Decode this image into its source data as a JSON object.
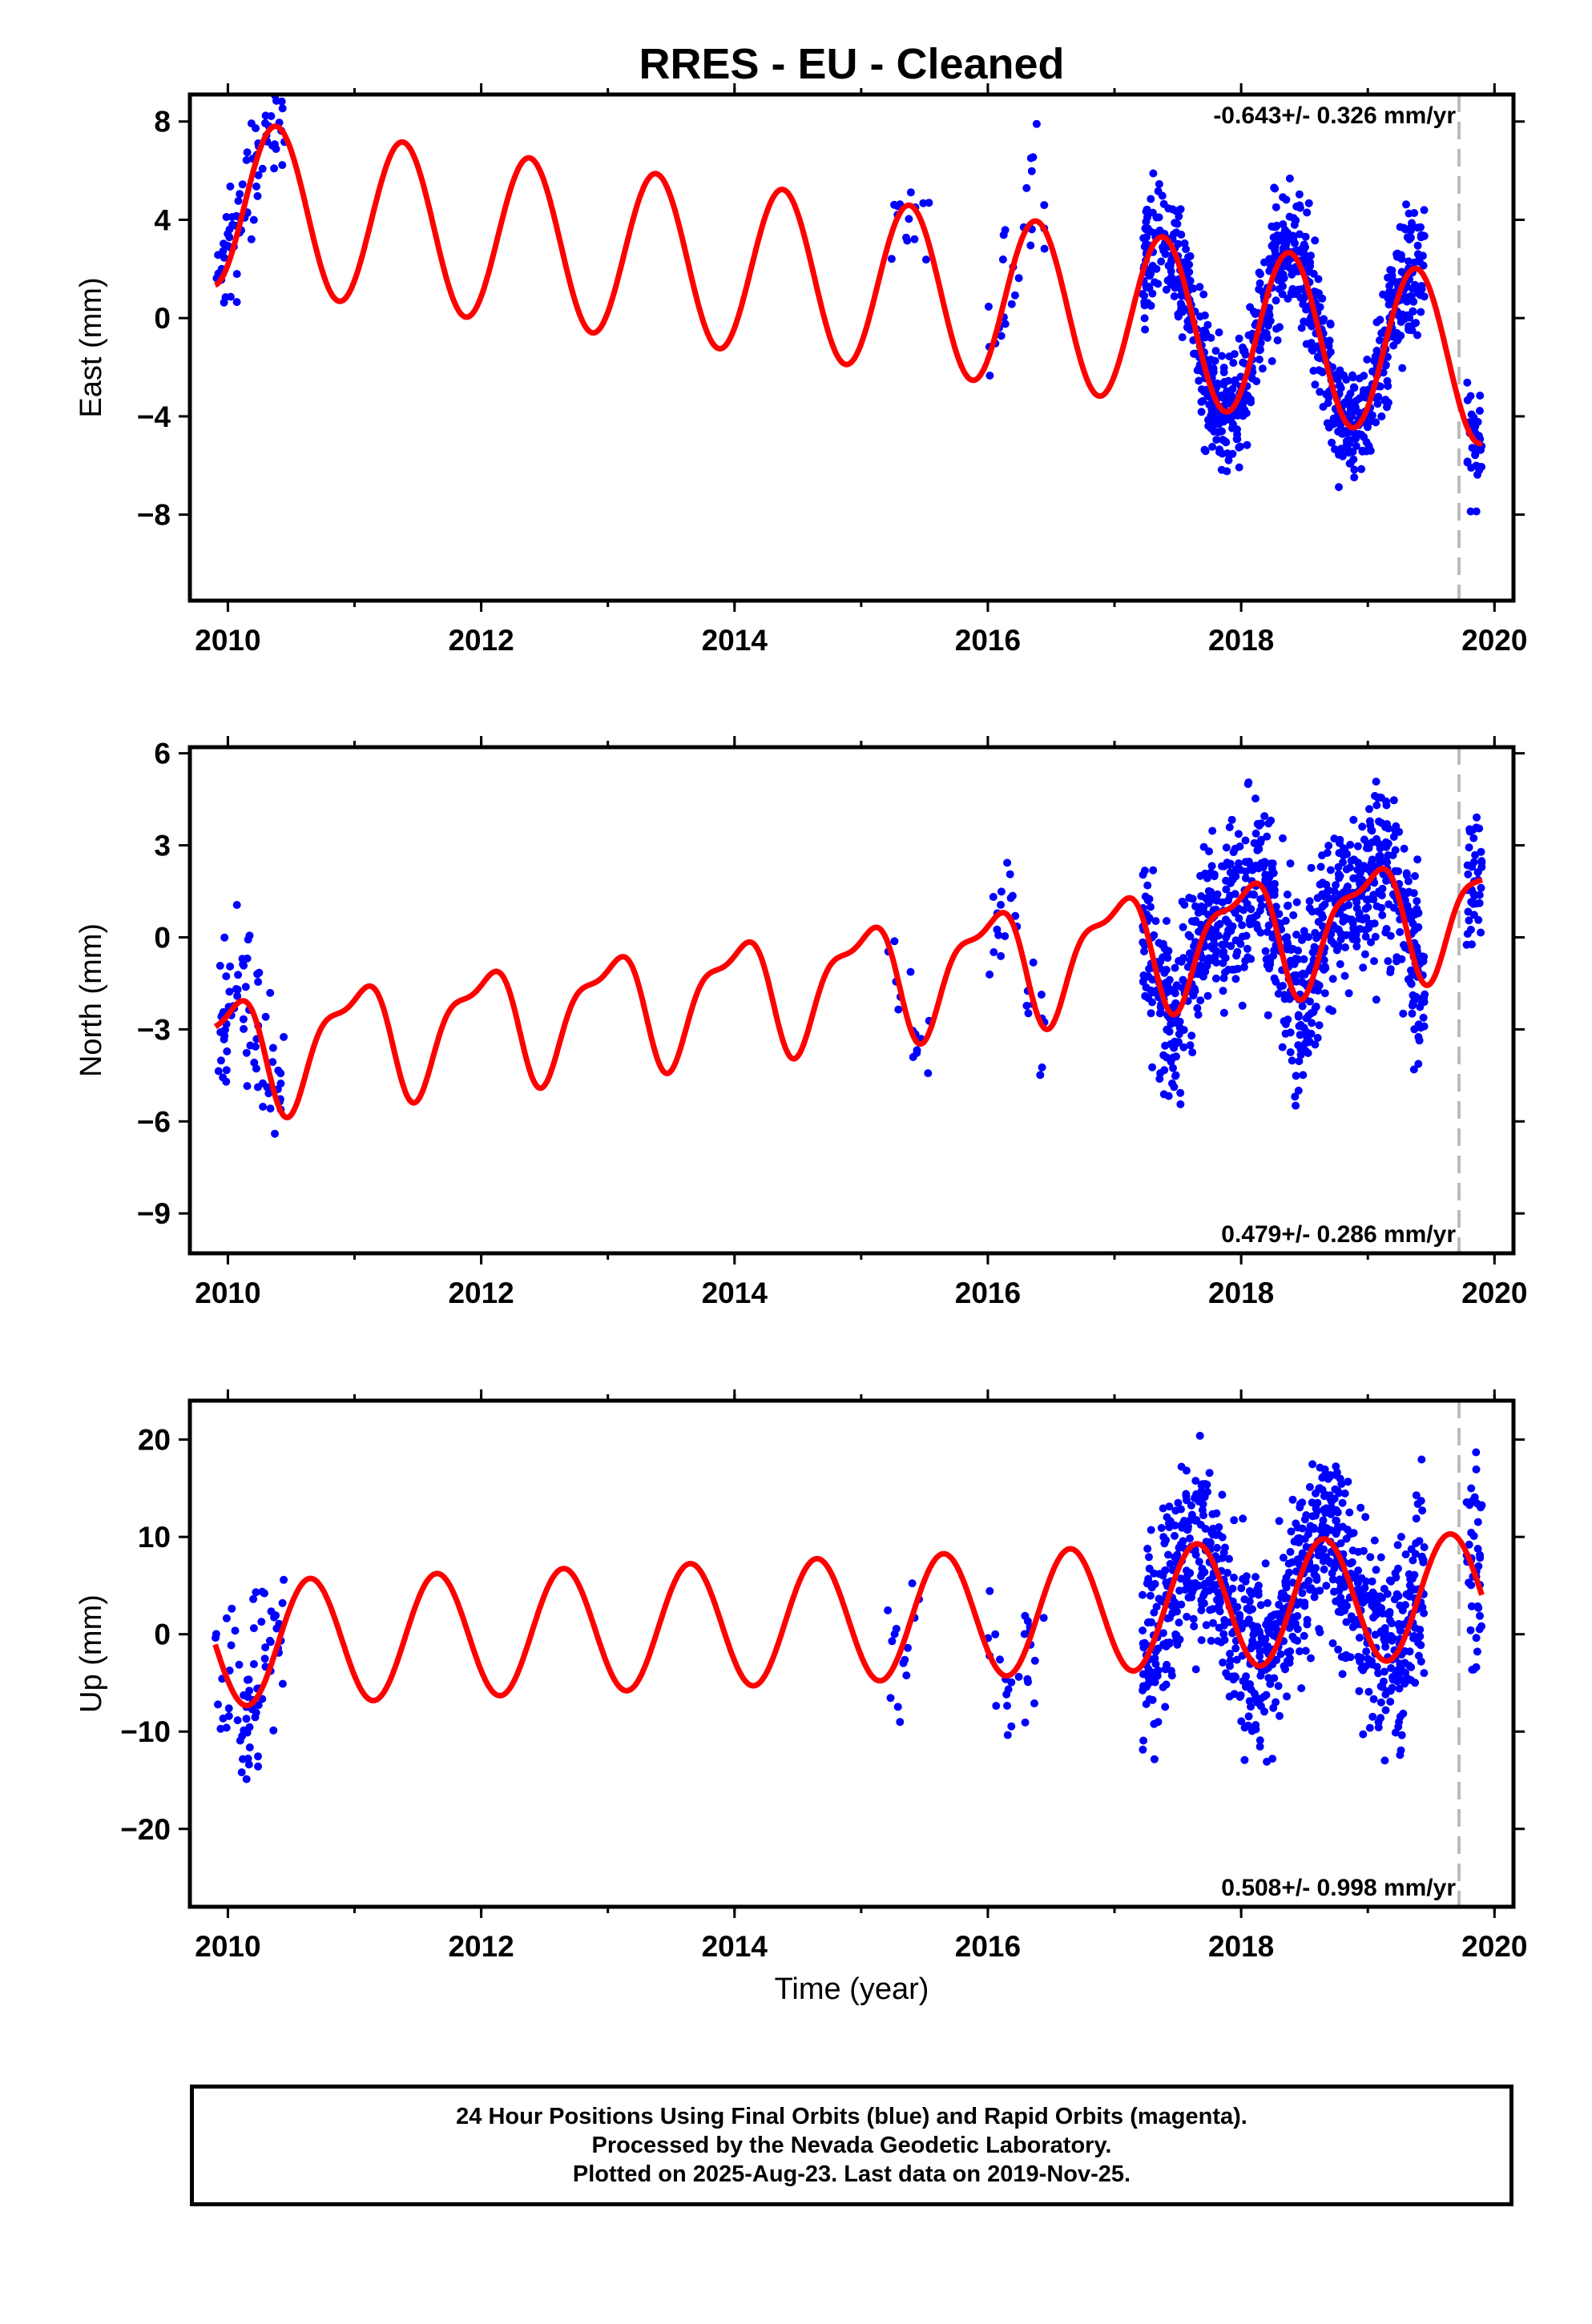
{
  "figure": {
    "title": "RRES  - EU - Cleaned",
    "xlabel": "Time (year)",
    "footer_lines": [
      "24 Hour Positions Using Final Orbits (blue) and Rapid Orbits (magenta).",
      "Processed by the Nevada Geodetic Laboratory.",
      "Plotted on 2025-Aug-23. Last data on 2019-Nov-25."
    ],
    "colors": {
      "points": "#0000ff",
      "fit": "#ff0000",
      "cutoff": "#bbbbbb",
      "frame": "#000000"
    }
  },
  "chart_data": [
    {
      "type": "scatter",
      "ylabel": "East (mm)",
      "rate_label": "-0.643+/- 0.326 mm/yr",
      "rate_position": "top-right",
      "xlim": [
        2009.7,
        2020.15
      ],
      "ylim": [
        -11.5,
        9.1
      ],
      "xticks": [
        "2010",
        "2012",
        "2014",
        "2016",
        "2018",
        "2020"
      ],
      "yticks": [
        "8",
        "4",
        "0",
        "−4",
        "−8"
      ],
      "ytick_values": [
        8,
        4,
        0,
        -4,
        -8
      ],
      "cutoff_year": 2019.72,
      "model": {
        "offset": 4.65,
        "rate": -0.643,
        "ref_year": 2010.0,
        "annual_amp": 3.4,
        "annual_peak": 2010.38,
        "semiannual_amp": 0.0,
        "semiannual_peak": 2010.0
      },
      "segments": [
        {
          "start": 2009.9,
          "end": 2010.45,
          "count": 70,
          "spread": 1.4
        },
        {
          "start": 2015.2,
          "end": 2015.55,
          "count": 14,
          "spread": 1.1
        },
        {
          "start": 2016.0,
          "end": 2016.45,
          "count": 26,
          "spread": 1.8
        },
        {
          "start": 2017.22,
          "end": 2019.45,
          "count": 900,
          "spread": 1.3
        },
        {
          "start": 2019.78,
          "end": 2019.9,
          "count": 40,
          "spread": 1.2
        }
      ]
    },
    {
      "type": "scatter",
      "ylabel": "North (mm)",
      "rate_label": "0.479+/- 0.286 mm/yr",
      "rate_position": "bottom-right",
      "xlim": [
        2009.7,
        2020.15
      ],
      "ylim": [
        -10.3,
        6.2
      ],
      "xticks": [
        "2010",
        "2012",
        "2014",
        "2016",
        "2018",
        "2020"
      ],
      "yticks": [
        "6",
        "3",
        "0",
        "−3",
        "−6",
        "−9"
      ],
      "ytick_values": [
        6,
        3,
        0,
        -3,
        -6,
        -9
      ],
      "cutoff_year": 2019.72,
      "model": {
        "offset": -3.75,
        "rate": 0.479,
        "ref_year": 2010.0,
        "annual_amp": 1.75,
        "annual_peak": 2011.0,
        "semiannual_amp": 0.65,
        "semiannual_peak": 2010.2
      },
      "segments": [
        {
          "start": 2009.9,
          "end": 2010.45,
          "count": 70,
          "spread": 1.3
        },
        {
          "start": 2015.2,
          "end": 2015.55,
          "count": 14,
          "spread": 1.0
        },
        {
          "start": 2016.0,
          "end": 2016.45,
          "count": 26,
          "spread": 1.0
        },
        {
          "start": 2017.22,
          "end": 2019.45,
          "count": 900,
          "spread": 1.4
        },
        {
          "start": 2019.78,
          "end": 2019.9,
          "count": 40,
          "spread": 1.0
        }
      ]
    },
    {
      "type": "scatter",
      "ylabel": "Up (mm)",
      "rate_label": "0.508+/- 0.998 mm/yr",
      "rate_position": "bottom-right",
      "xlim": [
        2009.7,
        2020.15
      ],
      "ylim": [
        -28,
        24
      ],
      "xticks": [
        "2010",
        "2012",
        "2014",
        "2016",
        "2018",
        "2020"
      ],
      "yticks": [
        "20",
        "10",
        "0",
        "−10",
        "−20"
      ],
      "ytick_values": [
        20,
        10,
        0,
        -10,
        -20
      ],
      "cutoff_year": 2019.72,
      "model": {
        "offset": -1.0,
        "rate": 0.508,
        "ref_year": 2010.0,
        "annual_amp": 6.4,
        "annual_peak": 2010.65,
        "semiannual_amp": 0.0,
        "semiannual_peak": 2010.0
      },
      "segments": [
        {
          "start": 2009.9,
          "end": 2010.45,
          "count": 70,
          "spread": 4.5
        },
        {
          "start": 2015.2,
          "end": 2015.55,
          "count": 14,
          "spread": 4.0
        },
        {
          "start": 2016.0,
          "end": 2016.45,
          "count": 26,
          "spread": 4.0
        },
        {
          "start": 2017.22,
          "end": 2019.45,
          "count": 900,
          "spread": 5.0
        },
        {
          "start": 2019.78,
          "end": 2019.9,
          "count": 40,
          "spread": 5.0
        }
      ]
    }
  ]
}
